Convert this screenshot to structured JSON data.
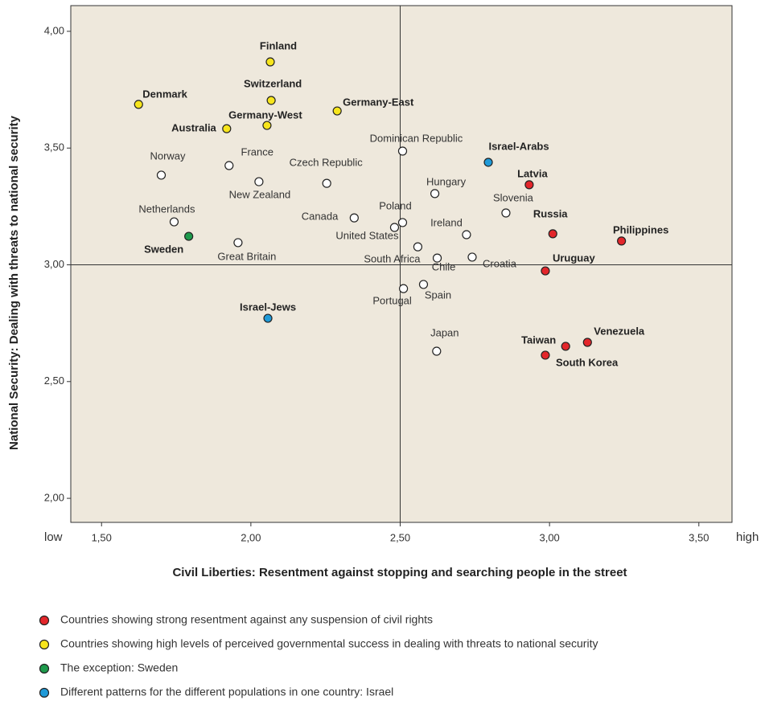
{
  "chart_data": {
    "type": "scatter",
    "x_label": "Civil Liberties: Resentment against stopping and searching people in the street",
    "y_label": "National Security: Dealing with threats to national security",
    "x_low_label": "low",
    "x_high_label": "high",
    "xlim": [
      1.397,
      3.611
    ],
    "ylim": [
      1.897,
      4.11
    ],
    "xticks": [
      {
        "value": 1.5,
        "label": "1,50"
      },
      {
        "value": 2.0,
        "label": "2,00"
      },
      {
        "value": 2.5,
        "label": "2,50"
      },
      {
        "value": 3.0,
        "label": "3,00"
      },
      {
        "value": 3.5,
        "label": "3,50"
      }
    ],
    "yticks": [
      {
        "value": 2.0,
        "label": "2,00"
      },
      {
        "value": 2.5,
        "label": "2,50"
      },
      {
        "value": 3.0,
        "label": "3,00"
      },
      {
        "value": 3.5,
        "label": "3,50"
      },
      {
        "value": 4.0,
        "label": "4,00"
      }
    ],
    "reference_lines": {
      "x": 2.5,
      "y": 3.0
    },
    "series": [
      {
        "name": "Countries showing strong resentment against any suspension of civil rights",
        "color": "#e3262b",
        "bold": true,
        "labels": [
          "Latvia",
          "Russia",
          "Philippines",
          "Uruguay",
          "Venezuela",
          "Taiwan",
          "South Korea"
        ],
        "x": [
          2.932,
          3.011,
          3.241,
          2.986,
          3.127,
          3.054,
          2.986
        ],
        "values": [
          3.343,
          3.133,
          3.102,
          2.974,
          2.668,
          2.651,
          2.613
        ]
      },
      {
        "name": "Countries showing high levels of perceived governmental success in dealing with threats to national security",
        "color": "#f7e51c",
        "bold": true,
        "labels": [
          "Finland",
          "Switzerland",
          "Germany-East",
          "Denmark",
          "Germany-West",
          "Australia"
        ],
        "x": [
          2.065,
          2.068,
          2.289,
          1.624,
          2.054,
          1.919
        ],
        "values": [
          3.869,
          3.704,
          3.659,
          3.687,
          3.597,
          3.583
        ]
      },
      {
        "name": "The exception: Sweden",
        "color": "#1e9a4c",
        "bold": true,
        "labels": [
          "Sweden"
        ],
        "x": [
          1.792
        ],
        "values": [
          3.122
        ]
      },
      {
        "name": "Different patterns for the different populations in one country: Israel",
        "color": "#1f9ad8",
        "bold": true,
        "labels": [
          "Israel-Arabs",
          "Israel-Jews"
        ],
        "x": [
          2.795,
          2.057
        ],
        "values": [
          3.439,
          2.771
        ]
      },
      {
        "color": "#ffffff",
        "bold": false,
        "labels": [
          "Norway",
          "France",
          "New Zealand",
          "Czech Republic",
          "Dominican Republic",
          "Hungary",
          "Slovenia",
          "Netherlands",
          "Canada",
          "Poland",
          "United States",
          "Ireland",
          "Great Britain",
          "South Africa",
          "Chile",
          "Croatia",
          "Portugal",
          "Spain",
          "Japan"
        ],
        "x": [
          1.7,
          1.927,
          2.027,
          2.254,
          2.508,
          2.616,
          2.854,
          1.743,
          2.346,
          2.508,
          2.481,
          2.722,
          1.957,
          2.559,
          2.624,
          2.741,
          2.511,
          2.578,
          2.622
        ],
        "values": [
          3.384,
          3.425,
          3.356,
          3.349,
          3.487,
          3.305,
          3.222,
          3.184,
          3.201,
          3.181,
          3.16,
          3.129,
          3.095,
          3.077,
          3.029,
          3.033,
          2.898,
          2.916,
          2.63
        ]
      }
    ]
  }
}
